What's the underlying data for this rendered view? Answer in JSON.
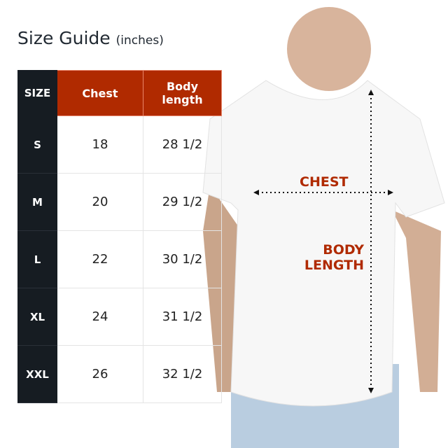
{
  "title": {
    "main": "Size Guide",
    "unit": "(inches)"
  },
  "table": {
    "headers": [
      "SIZE",
      "Chest",
      "Body length"
    ],
    "rows": [
      {
        "size": "S",
        "chest": "18",
        "length": "28 1/2"
      },
      {
        "size": "M",
        "chest": "20",
        "length": "29 1/2"
      },
      {
        "size": "L",
        "chest": "22",
        "length": "30 1/2"
      },
      {
        "size": "XL",
        "chest": "24",
        "length": "31 1/2"
      },
      {
        "size": "XXL",
        "chest": "26",
        "length": "32 1/2"
      }
    ]
  },
  "diagram": {
    "chest_label": "CHEST",
    "length_label_1": "BODY",
    "length_label_2": "LENGTH"
  },
  "colors": {
    "accent": "#b02a00",
    "dark": "#161c22"
  }
}
